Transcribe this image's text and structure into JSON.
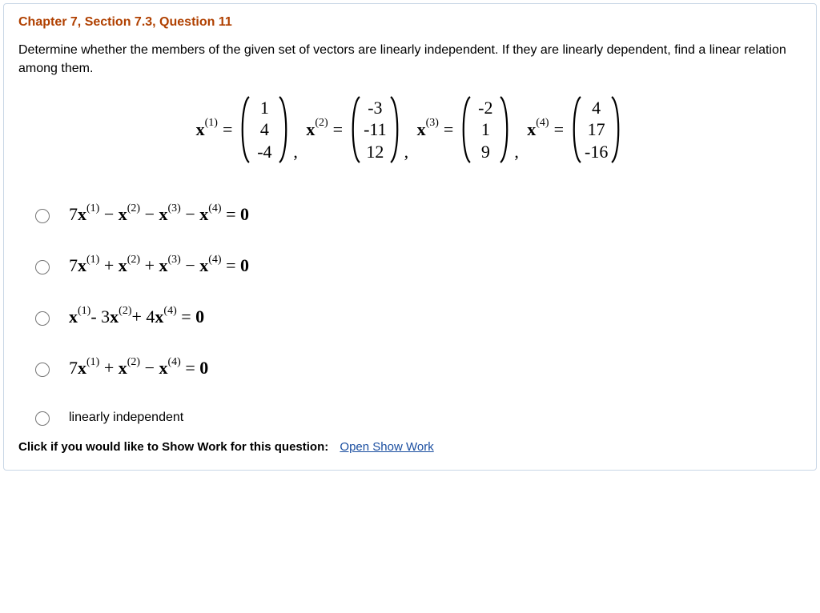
{
  "title": "Chapter 7, Section 7.3, Question 11",
  "prompt": "Determine whether the members of the given set of vectors are linearly independent. If they are linearly dependent, find a linear relation among them.",
  "vectors": {
    "labels": [
      "x",
      "x",
      "x",
      "x"
    ],
    "sups": [
      "(1)",
      "(2)",
      "(3)",
      "(4)"
    ],
    "cols": [
      [
        "1",
        "4",
        "-4"
      ],
      [
        "-3",
        "-11",
        "12"
      ],
      [
        "-2",
        "1",
        "9"
      ],
      [
        "4",
        "17",
        "-16"
      ]
    ],
    "paren_color": "#000000",
    "text_color": "#000000"
  },
  "options": [
    {
      "type": "math",
      "html": "7<b>x</b><sup>(1)</sup> − <b>x</b><sup>(2)</sup> − <b>x</b><sup>(3)</sup> − <b>x</b><sup>(4)</sup> = <b>0</b>"
    },
    {
      "type": "math",
      "html": "7<b>x</b><sup>(1)</sup> + <b>x</b><sup>(2)</sup> + <b>x</b><sup>(3)</sup> − <b>x</b><sup>(4)</sup> = <b>0</b>"
    },
    {
      "type": "math",
      "html": "<b>x</b><sup>(1)</sup>- 3<b>x</b><sup>(2)</sup>+ 4<b>x</b><sup>(4)</sup> = <b>0</b>"
    },
    {
      "type": "math",
      "html": "7<b>x</b><sup>(1)</sup> + <b>x</b><sup>(2)</sup> − <b>x</b><sup>(4)</sup> = <b>0</b>"
    },
    {
      "type": "text",
      "html": "linearly independent"
    }
  ],
  "show_work": {
    "label": "Click if you would like to Show Work for this question:",
    "link": "Open Show Work"
  },
  "colors": {
    "title": "#b04000",
    "border": "#c9d7e6",
    "link": "#1a4ea0",
    "background": "#ffffff"
  }
}
